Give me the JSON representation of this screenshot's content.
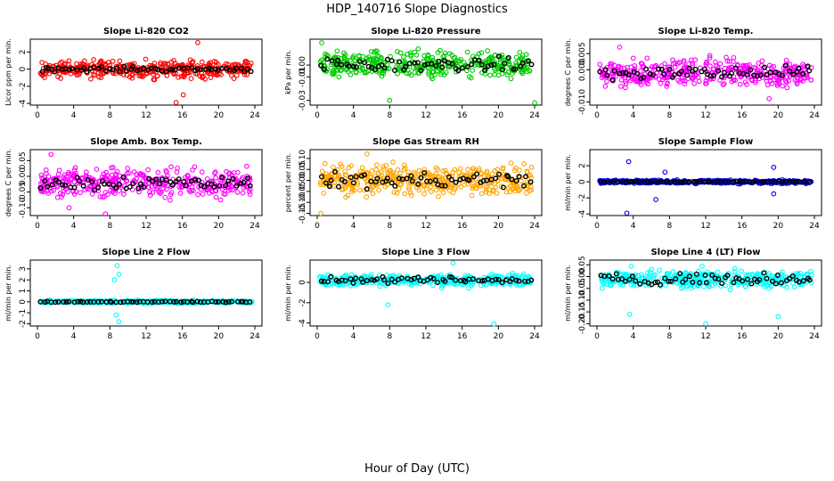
{
  "figure": {
    "title": "HDP_140716  Slope Diagnostics",
    "xlabel": "Hour of Day (UTC)"
  },
  "chart_data": [
    {
      "type": "scatter",
      "title": "Slope Li-820 CO2",
      "ylabel": "Licor ppm per min.",
      "color": "#ff0000",
      "xlim": [
        0,
        24
      ],
      "xticks": [
        0,
        4,
        8,
        12,
        16,
        20,
        24
      ],
      "ylim": [
        -4.2,
        3.5
      ],
      "yticks": [
        -4,
        -2,
        0,
        2
      ],
      "spread": 0.9,
      "center": 0.0,
      "outliers": [
        [
          15.3,
          -3.9
        ],
        [
          17.7,
          3.1
        ],
        [
          16.1,
          -3.0
        ]
      ],
      "black_spread": 0.3
    },
    {
      "type": "scatter",
      "title": "Slope Li-820 Pressure",
      "ylabel": "kPa per min.",
      "color": "#00cc00",
      "xlim": [
        0,
        24
      ],
      "xticks": [
        0,
        4,
        8,
        12,
        16,
        20,
        24
      ],
      "ylim": [
        -0.034,
        0.022
      ],
      "yticks": [
        -0.03,
        -0.01,
        0.0
      ],
      "spread": 0.01,
      "center": 0.0,
      "outliers": [
        [
          0.5,
          0.019
        ],
        [
          8,
          -0.03
        ],
        [
          24,
          -0.032
        ]
      ],
      "black_spread": 0.006
    },
    {
      "type": "scatter",
      "title": "Slope Li-820 Temp.",
      "ylabel": "degrees C per min.",
      "color": "#ff00ff",
      "xlim": [
        0,
        24
      ],
      "xticks": [
        0,
        4,
        8,
        12,
        16,
        20,
        24
      ],
      "ylim": [
        -0.011,
        0.0095
      ],
      "yticks": [
        -0.01,
        0.0,
        0.005
      ],
      "spread": 0.004,
      "center": -0.001,
      "outliers": [
        [
          2.5,
          0.007
        ],
        [
          19,
          -0.009
        ]
      ],
      "black_spread": 0.002
    },
    {
      "type": "scatter",
      "title": "Slope Amb. Box Temp.",
      "ylabel": "degrees C per min.",
      "color": "#ff00ff",
      "xlim": [
        0,
        24
      ],
      "xticks": [
        0,
        4,
        8,
        12,
        16,
        20,
        24
      ],
      "ylim": [
        -0.125,
        0.085
      ],
      "yticks": [
        -0.1,
        -0.05,
        0.0,
        0.05
      ],
      "spread": 0.04,
      "center": -0.02,
      "outliers": [
        [
          1.5,
          0.07
        ],
        [
          7.5,
          -0.12
        ],
        [
          3.5,
          -0.1
        ]
      ],
      "black_spread": 0.025
    },
    {
      "type": "scatter",
      "title": "Slope Gas Stream RH",
      "ylabel": "percent per min.",
      "color": "#ffa500",
      "xlim": [
        0,
        24
      ],
      "xticks": [
        0,
        4,
        8,
        12,
        16,
        20,
        24
      ],
      "ylim": [
        -0.16,
        0.14
      ],
      "yticks": [
        -0.15,
        -0.1,
        -0.05,
        0.0,
        0.05,
        0.1
      ],
      "spread": 0.06,
      "center": 0.0,
      "outliers": [
        [
          0.4,
          -0.15
        ],
        [
          5.5,
          0.12
        ]
      ],
      "black_spread": 0.04
    },
    {
      "type": "scatter",
      "title": "Slope Sample Flow",
      "ylabel": "ml/min per min.",
      "color": "#0000dd",
      "xlim": [
        0,
        24
      ],
      "xticks": [
        0,
        4,
        8,
        12,
        16,
        20,
        24
      ],
      "ylim": [
        -4.2,
        4.0
      ],
      "yticks": [
        -4,
        -2,
        0,
        2
      ],
      "spread": 0.2,
      "center": 0.0,
      "outliers": [
        [
          3.5,
          2.5
        ],
        [
          3.3,
          -3.9
        ],
        [
          6.5,
          -2.2
        ],
        [
          7.5,
          1.2
        ],
        [
          19.5,
          1.8
        ],
        [
          19.5,
          -1.5
        ]
      ],
      "black_spread": 0.05
    },
    {
      "type": "scatter",
      "title": "Slope Line 2 Flow",
      "ylabel": "ml/min per min.",
      "color": "#00ffff",
      "xlim": [
        0,
        24
      ],
      "xticks": [
        0,
        4,
        8,
        12,
        16,
        20,
        24
      ],
      "ylim": [
        -2.2,
        3.8
      ],
      "yticks": [
        -2,
        -1,
        0,
        1,
        2,
        3
      ],
      "spread": 0.12,
      "center": 0.0,
      "outliers": [
        [
          8.8,
          3.3
        ],
        [
          9,
          2.5
        ],
        [
          8.5,
          2.0
        ],
        [
          9,
          -1.8
        ],
        [
          8.7,
          -1.2
        ]
      ],
      "black_spread": 0.04
    },
    {
      "type": "scatter",
      "title": "Slope Line 3 Flow",
      "ylabel": "ml/min per min.",
      "color": "#00ffff",
      "xlim": [
        0,
        24
      ],
      "xticks": [
        0,
        4,
        8,
        12,
        16,
        20,
        24
      ],
      "ylim": [
        -4.3,
        2.2
      ],
      "yticks": [
        -4,
        -2,
        0
      ],
      "spread": 0.5,
      "center": 0.2,
      "outliers": [
        [
          19.5,
          -4.1
        ],
        [
          7.8,
          -2.2
        ],
        [
          15,
          1.9
        ]
      ],
      "black_spread": 0.3
    },
    {
      "type": "scatter",
      "title": "Slope Line 4 (LT) Flow",
      "ylabel": "ml/min per min.",
      "color": "#00ffff",
      "xlim": [
        0,
        24
      ],
      "xticks": [
        0,
        4,
        8,
        12,
        16,
        20,
        24
      ],
      "ylim": [
        -0.21,
        0.07
      ],
      "yticks": [
        -0.2,
        -0.15,
        -0.1,
        -0.05,
        0.0,
        0.05
      ],
      "spread": 0.035,
      "center": -0.01,
      "outliers": [
        [
          3.6,
          -0.16
        ],
        [
          12,
          -0.2
        ],
        [
          20,
          -0.17
        ]
      ],
      "black_spread": 0.025
    }
  ]
}
